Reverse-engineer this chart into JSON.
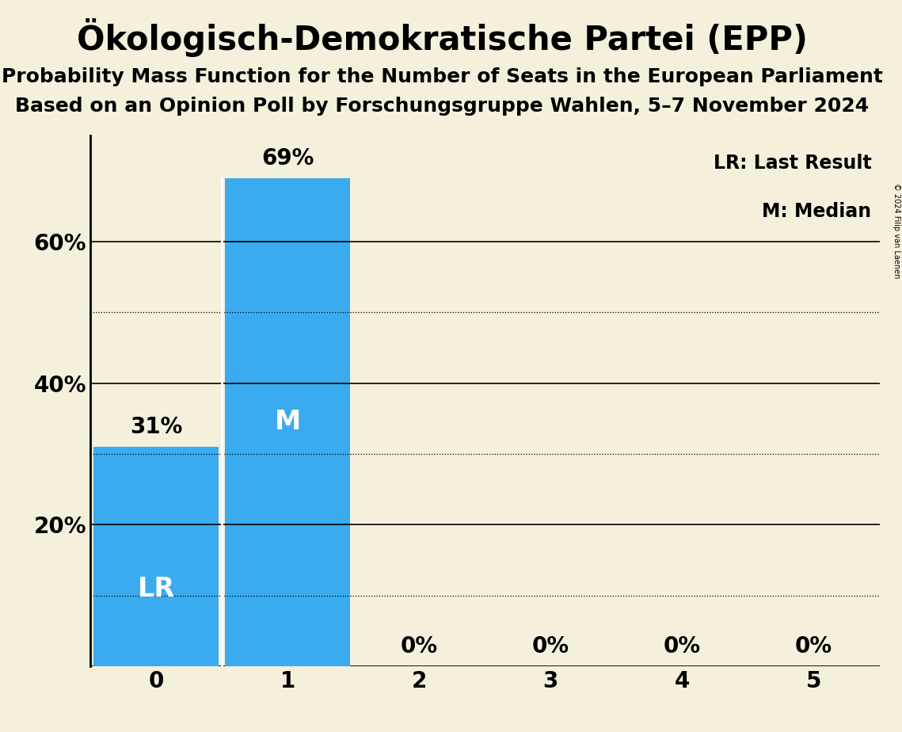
{
  "title": "Ökologisch-Demokratische Partei (EPP)",
  "subtitle1": "Probability Mass Function for the Number of Seats in the European Parliament",
  "subtitle2": "Based on an Opinion Poll by Forschungsgruppe Wahlen, 5–7 November 2024",
  "copyright": "© 2024 Filip van Laenen",
  "categories": [
    0,
    1,
    2,
    3,
    4,
    5
  ],
  "values": [
    0.31,
    0.69,
    0.0,
    0.0,
    0.0,
    0.0
  ],
  "bar_color": "#3AABEE",
  "background_color": "#F5F0DC",
  "bar_labels": [
    "31%",
    "69%",
    "0%",
    "0%",
    "0%",
    "0%"
  ],
  "label_inside": [
    "LR",
    "M"
  ],
  "label_inside_seats": [
    0,
    1
  ],
  "legend_lr": "LR: Last Result",
  "legend_m": "M: Median",
  "ylim": [
    0,
    0.75
  ],
  "yticks": [
    0.0,
    0.2,
    0.4,
    0.6
  ],
  "ytick_labels": [
    "",
    "20%",
    "40%",
    "60%"
  ],
  "solid_gridlines": [
    0.2,
    0.4,
    0.6
  ],
  "dotted_gridlines": [
    0.1,
    0.3,
    0.5
  ],
  "title_fontsize": 30,
  "subtitle_fontsize": 18,
  "label_fontsize": 20,
  "tick_fontsize": 20,
  "inside_label_fontsize": 24,
  "legend_fontsize": 17,
  "bar_width": 0.95
}
